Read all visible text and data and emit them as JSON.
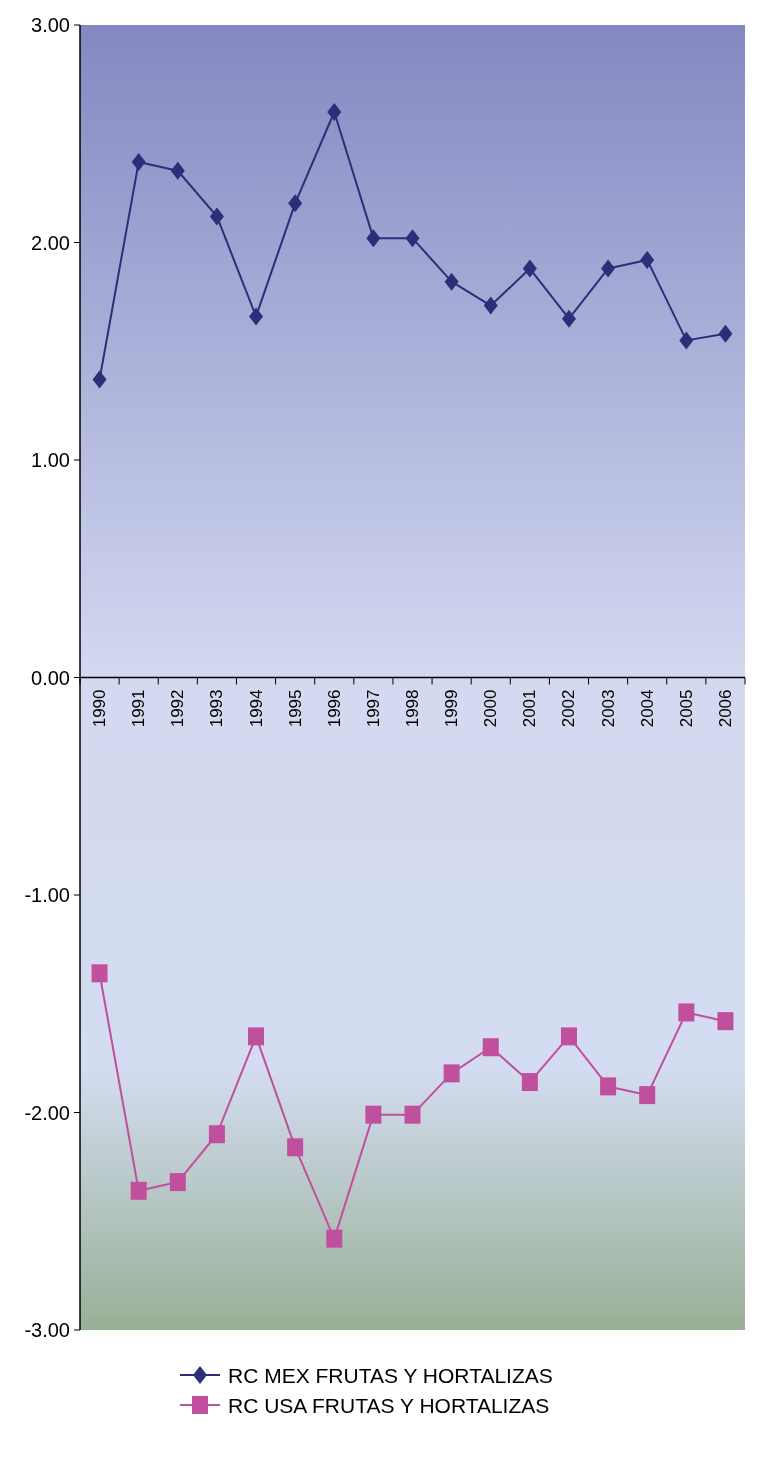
{
  "chart_data": {
    "type": "line",
    "categories": [
      "1990",
      "1991",
      "1992",
      "1993",
      "1994",
      "1995",
      "1996",
      "1997",
      "1998",
      "1999",
      "2000",
      "2001",
      "2002",
      "2003",
      "2004",
      "2005",
      "2006"
    ],
    "series": [
      {
        "name": "RC MEX FRUTAS Y HORTALIZAS",
        "color": "#2b2f7a",
        "marker": "diamond",
        "values": [
          1.37,
          2.37,
          2.33,
          2.12,
          1.66,
          2.18,
          2.6,
          2.02,
          2.02,
          1.82,
          1.71,
          1.88,
          1.65,
          1.88,
          1.92,
          1.55,
          1.58
        ]
      },
      {
        "name": "RC USA FRUTAS Y HORTALIZAS",
        "color": "#c0509e",
        "marker": "square",
        "values": [
          -1.36,
          -2.36,
          -2.32,
          -2.1,
          -1.65,
          -2.16,
          -2.58,
          -2.01,
          -2.01,
          -1.82,
          -1.7,
          -1.86,
          -1.65,
          -1.88,
          -1.92,
          -1.54,
          -1.58
        ]
      }
    ],
    "ylim": [
      -3,
      3
    ],
    "yticks": [
      {
        "value": 3,
        "label": "3.00"
      },
      {
        "value": 2,
        "label": "2.00"
      },
      {
        "value": 1,
        "label": "1.00"
      },
      {
        "value": 0,
        "label": "0.00"
      },
      {
        "value": -1,
        "label": "-1.00"
      },
      {
        "value": -2,
        "label": "-2.00"
      },
      {
        "value": -3,
        "label": "-3.00"
      }
    ],
    "grid": false,
    "legend": "bottom"
  }
}
